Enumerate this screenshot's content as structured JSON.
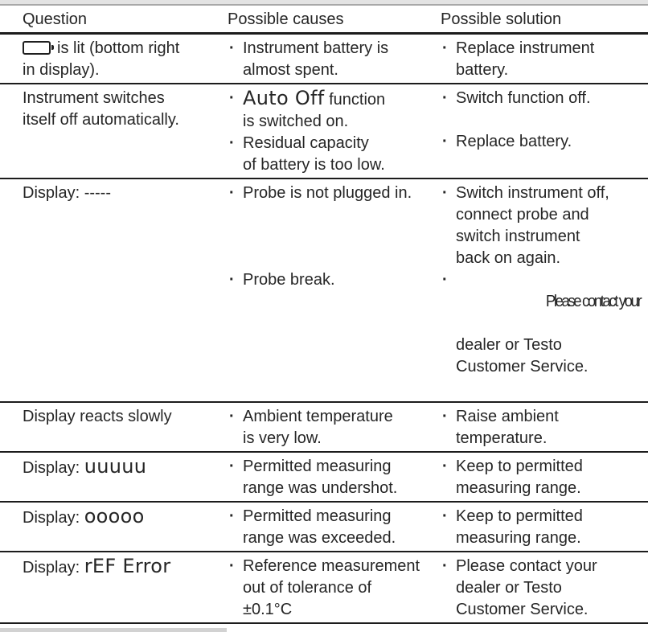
{
  "bullet": "·",
  "header": {
    "question": "Question",
    "causes": "Possible causes",
    "solution": "Possible solution"
  },
  "rows": {
    "battery": {
      "question_icon": "battery-icon",
      "question_lines": [
        "is lit (bottom right",
        "in display)."
      ],
      "cause1_lines": [
        "Instrument battery is",
        "almost spent."
      ],
      "solution1_lines": [
        "Replace instrument",
        "battery."
      ]
    },
    "auto_off": {
      "question_lines": [
        "Instrument switches",
        "itself off automatically."
      ],
      "cause1_disp": "Auto Off",
      "cause1_rest": " function",
      "cause1_line2": "is switched on.",
      "cause2_lines": [
        "Residual capacity",
        "of battery is too low."
      ],
      "solution1": "Switch function off.",
      "solution2": "Replace battery."
    },
    "dashes": {
      "question": "Display: -----",
      "cause1": "Probe is not plugged in.",
      "cause2": "Probe break.",
      "solution1_lines": [
        "Switch instrument off,",
        "connect probe and",
        "switch instrument",
        "back on again."
      ],
      "solution2_squished": "Please contact your",
      "solution2_lines": [
        "dealer or Testo",
        "Customer Service."
      ]
    },
    "slow": {
      "question": "Display reacts slowly",
      "cause1_lines": [
        "Ambient temperature",
        "is very low."
      ],
      "solution1_lines": [
        "Raise ambient",
        "temperature."
      ]
    },
    "undershot": {
      "question_prefix": "Display: ",
      "question_disp": "uuuuu",
      "cause1_lines": [
        "Permitted measuring",
        "range was undershot."
      ],
      "solution1_lines": [
        "Keep to permitted",
        "measuring range."
      ]
    },
    "exceeded": {
      "question_prefix": "Display: ",
      "question_disp": "ooooo",
      "cause1_lines": [
        "Permitted measuring",
        "range was exceeded."
      ],
      "solution1_lines": [
        "Keep to permitted",
        "measuring range."
      ]
    },
    "ref_error": {
      "question_prefix": "Display: ",
      "question_disp": "rEF Error",
      "cause1_lines": [
        "Reference measurement",
        "out of tolerance of",
        "±0.1°C"
      ],
      "solution1_lines": [
        "Please contact your",
        "dealer or Testo",
        "Customer Service."
      ]
    }
  },
  "colors": {
    "text": "#262626",
    "rule": "#1c1c1c",
    "top_band": "#e3e3e3",
    "artifact_bar": "#d2d2d2"
  }
}
